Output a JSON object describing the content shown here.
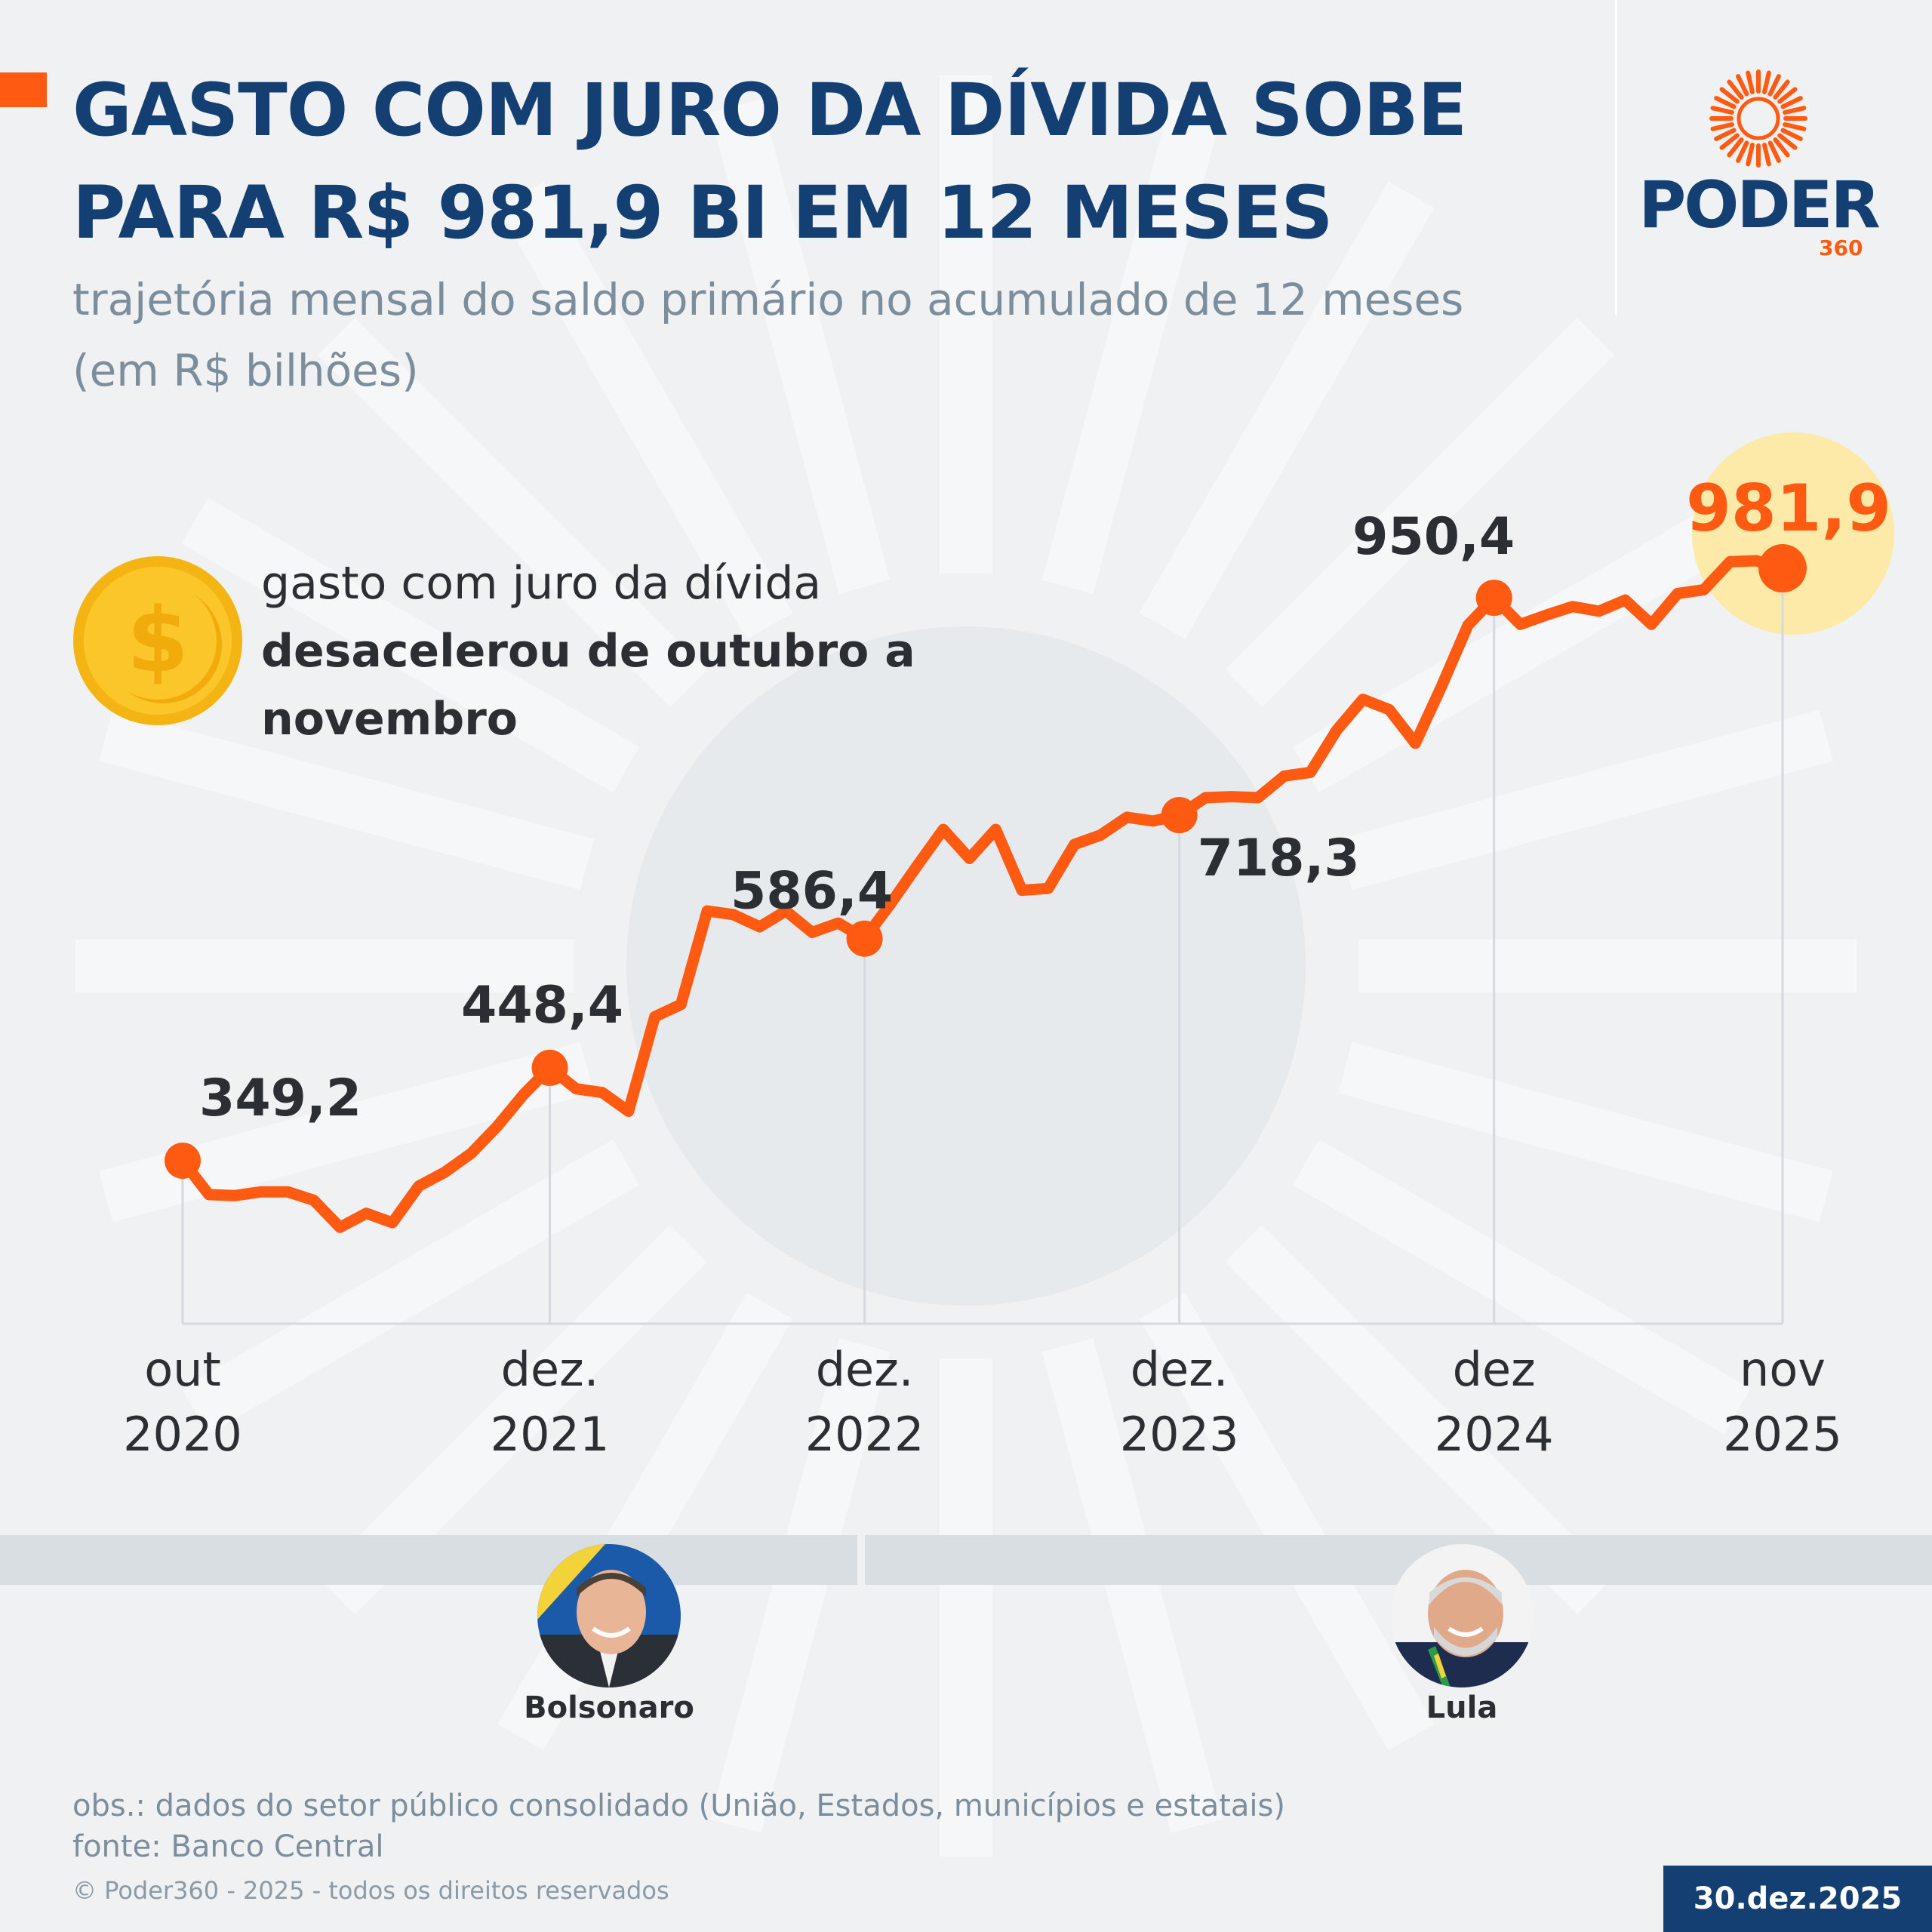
{
  "header": {
    "title": "GASTO COM JURO DA DÍVIDA SOBE PARA R$ 981,9 BI EM 12 MESES",
    "subtitle": "trajetória mensal do saldo primário no acumulado de 12 meses (em R$ bilhões)"
  },
  "logo": {
    "name": "PODER",
    "sub": "360"
  },
  "callout": {
    "line1": "gasto com juro da dívida",
    "line2": "desacelerou de outubro a novembro",
    "icon": "coin-dollar-icon"
  },
  "colors": {
    "accent": "#ff5a12",
    "brand": "#143f73",
    "highlight_bubble": "#fdeaa8",
    "gridline": "#d5d9dd",
    "background": "#eff1f3"
  },
  "chart_data": {
    "type": "line",
    "title": "GASTO COM JURO DA DÍVIDA SOBE PARA R$ 981,9 BI EM 12 MESES",
    "subtitle": "trajetória mensal do saldo primário no acumulado de 12 meses (em R$ bilhões)",
    "xlabel": "",
    "ylabel": "",
    "x_range": [
      "2020-10",
      "2025-11"
    ],
    "grid": false,
    "series": [
      {
        "values": [
          {
            "x": "2020-10",
            "y": 349.2
          },
          {
            "x": "2020-11",
            "y": 313
          },
          {
            "x": "2020-12",
            "y": 312
          },
          {
            "x": "2021-01",
            "y": 316
          },
          {
            "x": "2021-02",
            "y": 316
          },
          {
            "x": "2021-03",
            "y": 307
          },
          {
            "x": "2021-04",
            "y": 278
          },
          {
            "x": "2021-05",
            "y": 293
          },
          {
            "x": "2021-06",
            "y": 283
          },
          {
            "x": "2021-07",
            "y": 322
          },
          {
            "x": "2021-08",
            "y": 337
          },
          {
            "x": "2021-09",
            "y": 357
          },
          {
            "x": "2021-10",
            "y": 386
          },
          {
            "x": "2021-11",
            "y": 420
          },
          {
            "x": "2021-12",
            "y": 448.4
          },
          {
            "x": "2022-01",
            "y": 426
          },
          {
            "x": "2022-02",
            "y": 422
          },
          {
            "x": "2022-03",
            "y": 402
          },
          {
            "x": "2022-04",
            "y": 503
          },
          {
            "x": "2022-05",
            "y": 516
          },
          {
            "x": "2022-06",
            "y": 616
          },
          {
            "x": "2022-07",
            "y": 612
          },
          {
            "x": "2022-08",
            "y": 599
          },
          {
            "x": "2022-09",
            "y": 616
          },
          {
            "x": "2022-10",
            "y": 593
          },
          {
            "x": "2022-11",
            "y": 603
          },
          {
            "x": "2022-12",
            "y": 586.4
          },
          {
            "x": "2023-01",
            "y": 624
          },
          {
            "x": "2023-02",
            "y": 664
          },
          {
            "x": "2023-03",
            "y": 703
          },
          {
            "x": "2023-04",
            "y": 672
          },
          {
            "x": "2023-05",
            "y": 703
          },
          {
            "x": "2023-06",
            "y": 638
          },
          {
            "x": "2023-07",
            "y": 640
          },
          {
            "x": "2023-08",
            "y": 687
          },
          {
            "x": "2023-09",
            "y": 697
          },
          {
            "x": "2023-10",
            "y": 716
          },
          {
            "x": "2023-11",
            "y": 712
          },
          {
            "x": "2023-12",
            "y": 718.3
          },
          {
            "x": "2024-01",
            "y": 737
          },
          {
            "x": "2024-02",
            "y": 738
          },
          {
            "x": "2024-03",
            "y": 737
          },
          {
            "x": "2024-04",
            "y": 760
          },
          {
            "x": "2024-05",
            "y": 764
          },
          {
            "x": "2024-06",
            "y": 809
          },
          {
            "x": "2024-07",
            "y": 842
          },
          {
            "x": "2024-08",
            "y": 831
          },
          {
            "x": "2024-09",
            "y": 795
          },
          {
            "x": "2024-10",
            "y": 856
          },
          {
            "x": "2024-11",
            "y": 921
          },
          {
            "x": "2024-12",
            "y": 950.4
          },
          {
            "x": "2025-01",
            "y": 922
          },
          {
            "x": "2025-02",
            "y": 932
          },
          {
            "x": "2025-03",
            "y": 941
          },
          {
            "x": "2025-04",
            "y": 936
          },
          {
            "x": "2025-05",
            "y": 948
          },
          {
            "x": "2025-06",
            "y": 922
          },
          {
            "x": "2025-07",
            "y": 955
          },
          {
            "x": "2025-08",
            "y": 959
          },
          {
            "x": "2025-09",
            "y": 989
          },
          {
            "x": "2025-10",
            "y": 990
          },
          {
            "x": "2025-11",
            "y": 981.9
          }
        ]
      }
    ],
    "highlighted_points": [
      {
        "x": "2020-10",
        "label": "349,2"
      },
      {
        "x": "2021-12",
        "label": "448,4"
      },
      {
        "x": "2022-12",
        "label": "586,4"
      },
      {
        "x": "2023-12",
        "label": "718,3"
      },
      {
        "x": "2024-12",
        "label": "950,4"
      },
      {
        "x": "2025-11",
        "label": "981,9"
      }
    ],
    "x_tick_labels": [
      {
        "x": "2020-10",
        "line1": "out",
        "line2": "2020"
      },
      {
        "x": "2021-12",
        "line1": "dez.",
        "line2": "2021"
      },
      {
        "x": "2022-12",
        "line1": "dez.",
        "line2": "2022"
      },
      {
        "x": "2023-12",
        "line1": "dez.",
        "line2": "2023"
      },
      {
        "x": "2024-12",
        "line1": "dez",
        "line2": "2024"
      },
      {
        "x": "2025-11",
        "line1": "nov",
        "line2": "2025"
      }
    ]
  },
  "presidents": [
    {
      "name": "Bolsonaro",
      "period": [
        "2020-10",
        "2022-12"
      ]
    },
    {
      "name": "Lula",
      "period": [
        "2023-01",
        "2025-11"
      ]
    }
  ],
  "footer": {
    "obs": "obs.: dados do setor público consolidado (União, Estados, municípios e estatais)",
    "source": "fonte: Banco Central",
    "copyright": "© Poder360 - 2025 - todos os direitos reservados",
    "date": "30.dez.2025"
  }
}
